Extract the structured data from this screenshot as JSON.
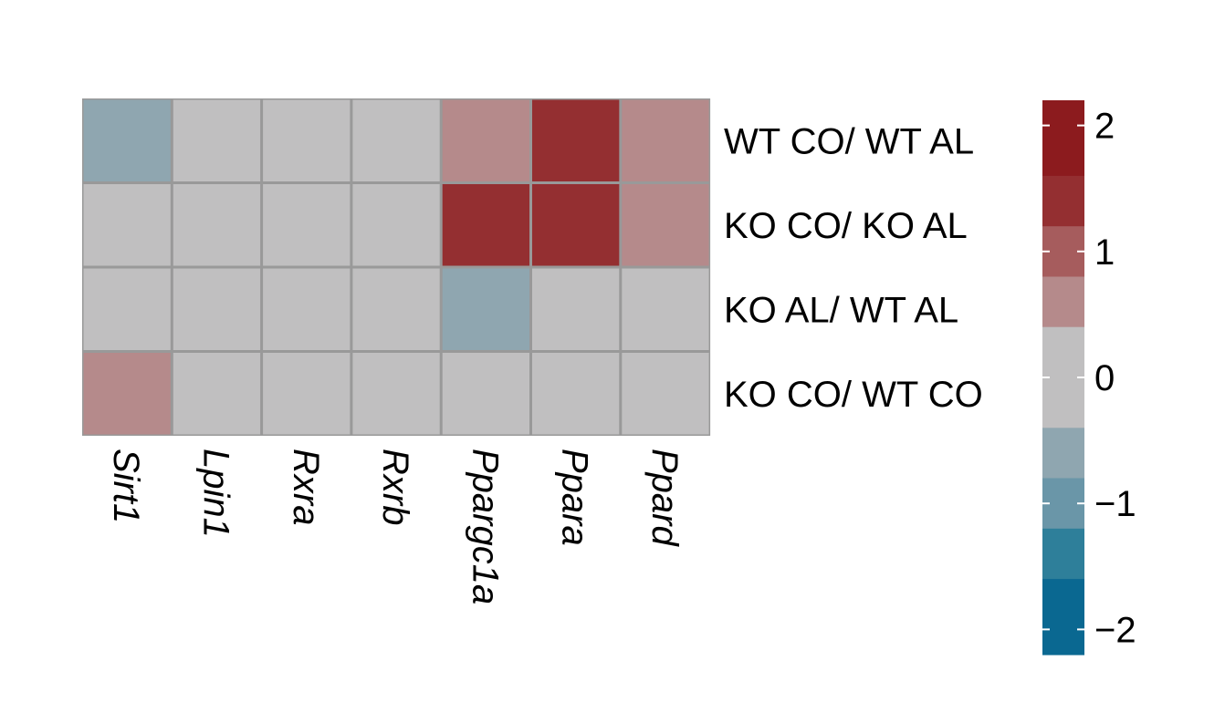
{
  "chart_data": {
    "type": "heatmap",
    "rows": [
      "WT CO/ WT AL",
      "KO CO/ KO AL",
      "KO AL/ WT AL",
      "KO CO/ WT CO"
    ],
    "columns": [
      "Sirt1",
      "Lpin1",
      "Rxra",
      "Rxrb",
      "Ppargc1a",
      "Ppara",
      "Ppard"
    ],
    "values": [
      [
        -0.6,
        0,
        0,
        0,
        0.6,
        1.2,
        0.6
      ],
      [
        0,
        0,
        0,
        0,
        1.2,
        1.2,
        0.6
      ],
      [
        0,
        0,
        0,
        0,
        -0.6,
        0,
        0
      ],
      [
        0.6,
        0,
        0,
        0,
        0,
        0,
        0
      ]
    ],
    "color_scale": {
      "range": [
        -2.2,
        2.2
      ],
      "ticks": [
        {
          "value": 2,
          "label": "2"
        },
        {
          "value": 1,
          "label": "1"
        },
        {
          "value": 0,
          "label": "0"
        },
        {
          "value": -1,
          "label": "−1"
        },
        {
          "value": -2,
          "label": "−2"
        }
      ],
      "bins": [
        {
          "from": 1.6,
          "to": 2.2,
          "color": "#8c1b1e"
        },
        {
          "from": 1.2,
          "to": 1.6,
          "color": "#942f31"
        },
        {
          "from": 0.8,
          "to": 1.2,
          "color": "#a65c5d"
        },
        {
          "from": 0.4,
          "to": 0.8,
          "color": "#b58a8b"
        },
        {
          "from": -0.4,
          "to": 0.4,
          "color": "#c0bfc0"
        },
        {
          "from": -0.8,
          "to": -0.4,
          "color": "#8fa6b0"
        },
        {
          "from": -1.2,
          "to": -0.8,
          "color": "#6a96a8"
        },
        {
          "from": -1.6,
          "to": -1.2,
          "color": "#2e7f9a"
        },
        {
          "from": -2.2,
          "to": -1.6,
          "color": "#0a6891"
        }
      ]
    },
    "grid_color": "#999999",
    "legend_position": "right"
  }
}
